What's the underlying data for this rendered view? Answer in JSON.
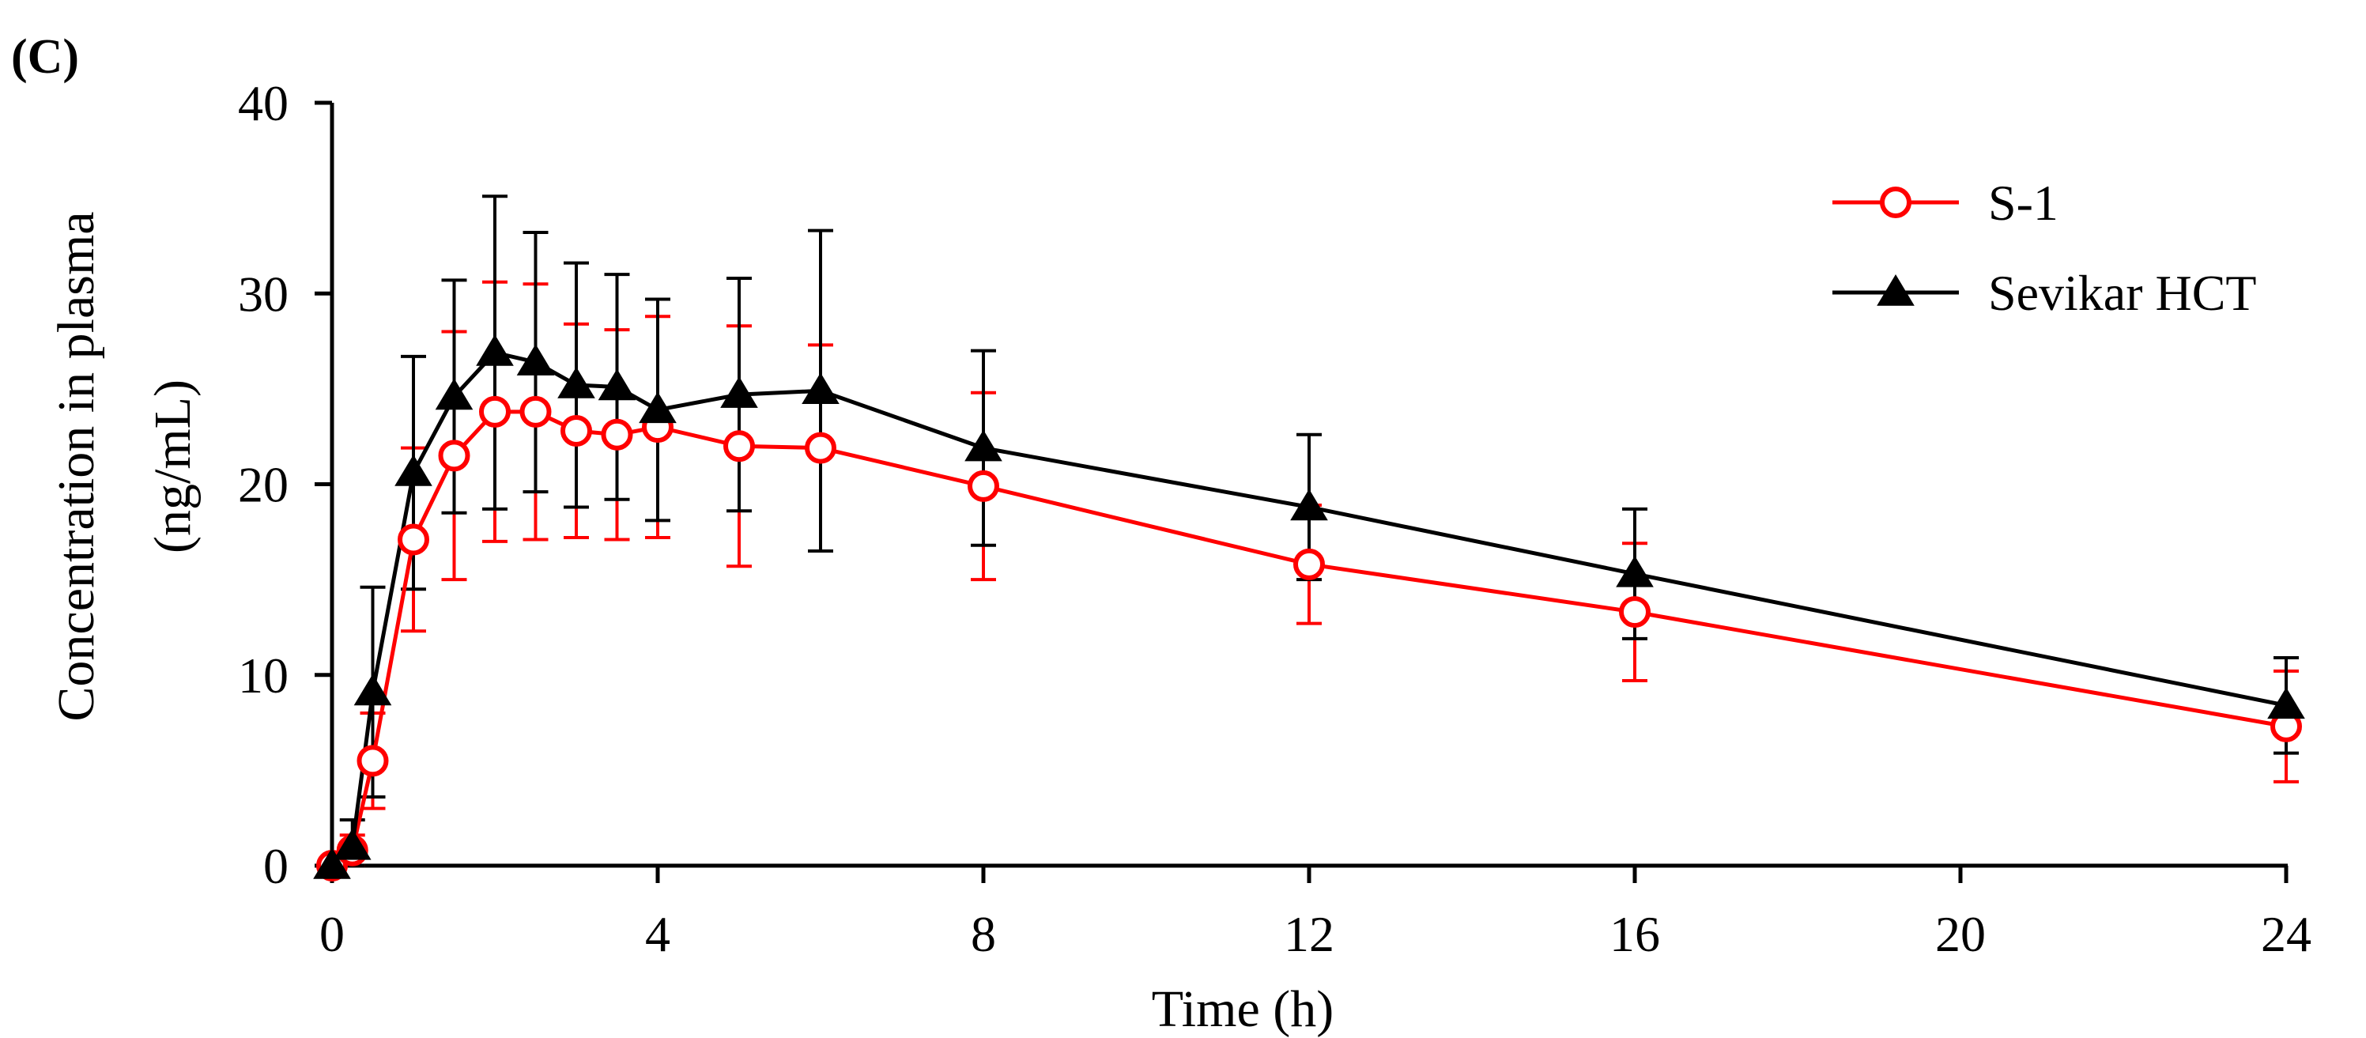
{
  "chart_data": {
    "type": "line",
    "panel_label": "(C)",
    "xlabel": "Time (h)",
    "ylabel_lines": [
      "Concentration in plasma",
      "(ng/mL)"
    ],
    "xlim": [
      0,
      24
    ],
    "ylim": [
      0,
      40
    ],
    "xticks": [
      0,
      4,
      8,
      12,
      16,
      20,
      24
    ],
    "yticks": [
      0,
      10,
      20,
      30,
      40
    ],
    "grid": false,
    "legend_position": "top-right",
    "series": [
      {
        "name": "S-1",
        "color": "#ff0000",
        "marker": "open-circle",
        "error_direction": "both",
        "x": [
          0,
          0.25,
          0.5,
          1,
          1.5,
          2,
          2.5,
          3,
          3.5,
          4,
          5,
          6,
          8,
          12,
          16,
          24
        ],
        "y": [
          0,
          0.8,
          5.5,
          17.1,
          21.5,
          23.8,
          23.8,
          22.8,
          22.6,
          23.0,
          22.0,
          21.9,
          19.9,
          15.8,
          13.3,
          7.3
        ],
        "error": [
          0.3,
          0.8,
          2.5,
          4.8,
          6.5,
          6.8,
          6.7,
          5.6,
          5.5,
          5.8,
          6.3,
          5.4,
          4.9,
          3.1,
          3.6,
          2.9
        ]
      },
      {
        "name": "Sevikar HCT",
        "color": "#000000",
        "marker": "filled-triangle",
        "error_direction": "both",
        "x": [
          0,
          0.25,
          0.5,
          1,
          1.5,
          2,
          2.5,
          3,
          3.5,
          4,
          5,
          6,
          8,
          12,
          16,
          24
        ],
        "y": [
          0,
          1.0,
          9.1,
          20.6,
          24.6,
          26.9,
          26.4,
          25.2,
          25.1,
          23.9,
          24.7,
          24.9,
          21.9,
          18.8,
          15.3,
          8.4
        ],
        "error": [
          0.3,
          1.4,
          5.5,
          6.1,
          6.1,
          8.2,
          6.8,
          6.4,
          5.9,
          5.8,
          6.1,
          8.4,
          5.1,
          3.8,
          3.4,
          2.5
        ]
      }
    ]
  }
}
